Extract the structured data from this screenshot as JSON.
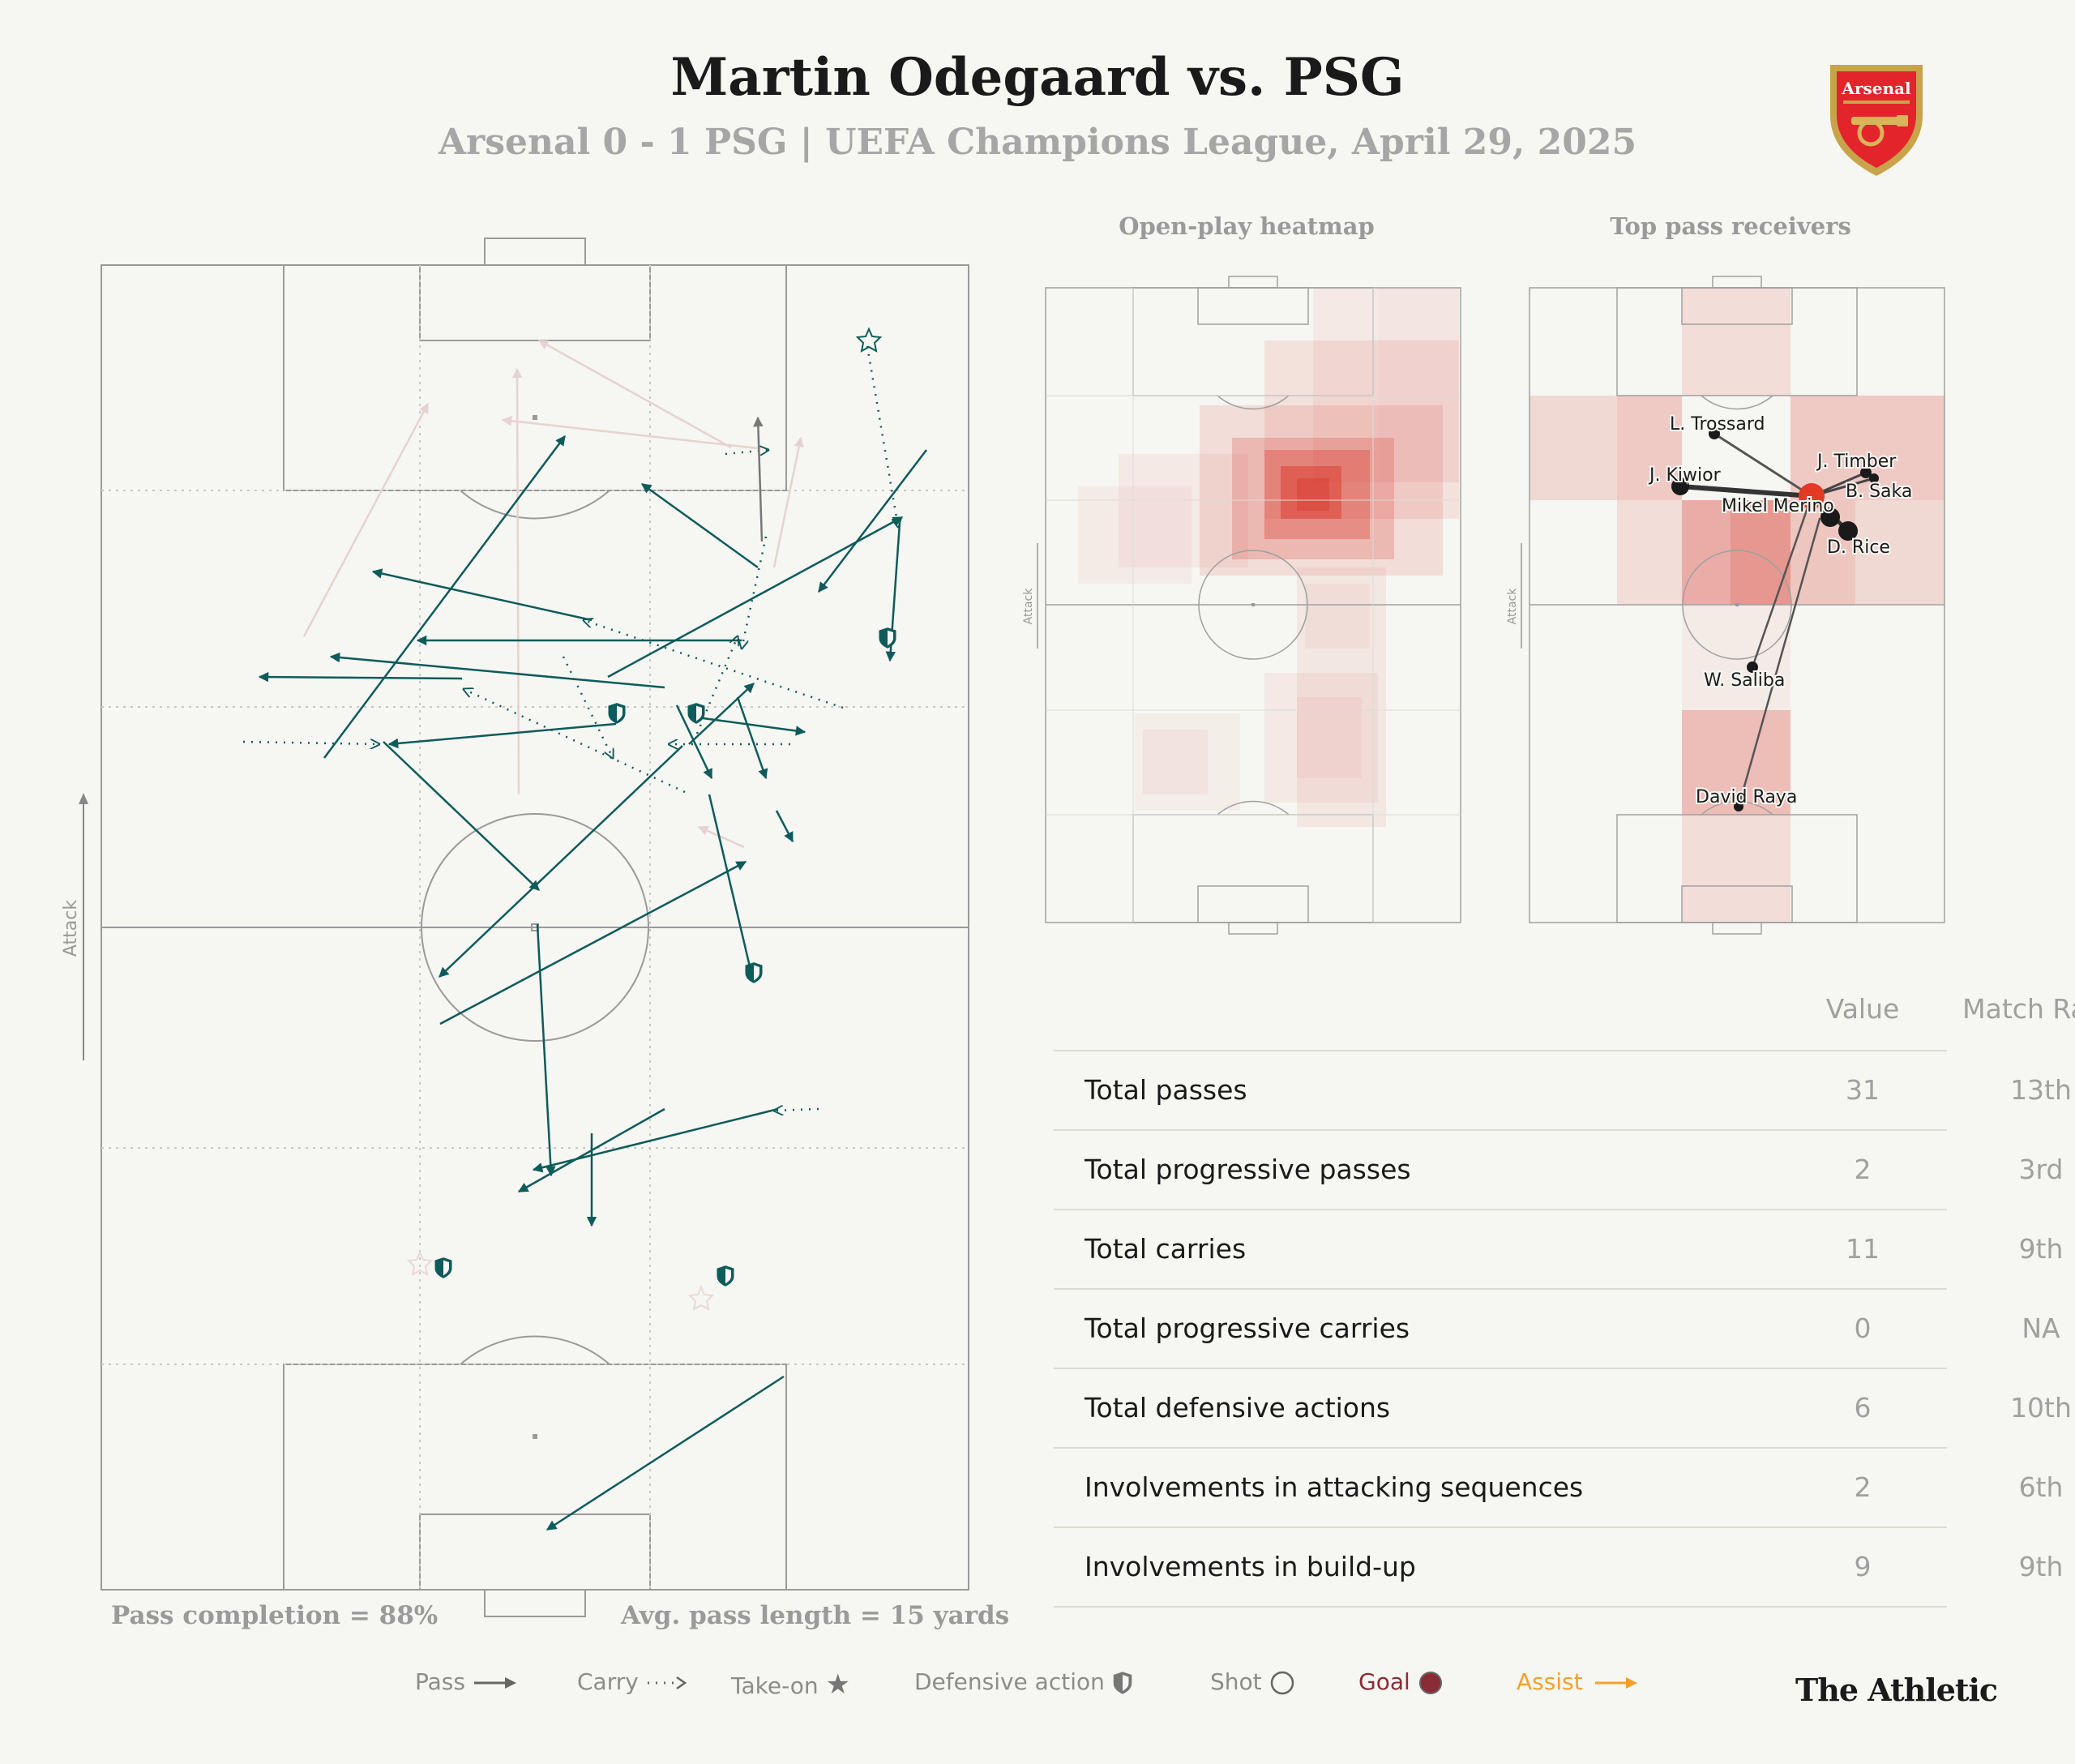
{
  "header": {
    "title": "Martin Odegaard vs. PSG",
    "subtitle": "Arsenal 0 - 1 PSG | UEFA Champions League, April 29, 2025",
    "crest_text": "Arsenal"
  },
  "main_pitch": {
    "attack_label": "Attack",
    "pass_completion": "Pass completion = 88%",
    "avg_pass_length": "Avg. pass length = 15 yards"
  },
  "heatmap": {
    "title": "Open-play heatmap",
    "attack_label": "Attack"
  },
  "receivers": {
    "title": "Top pass receivers",
    "attack_label": "Attack",
    "players": [
      {
        "name": "L. Trossard"
      },
      {
        "name": "J. Kiwior"
      },
      {
        "name": "J. Timber"
      },
      {
        "name": "B. Saka"
      },
      {
        "name": "Mikel Merino"
      },
      {
        "name": "D. Rice"
      },
      {
        "name": "W. Saliba"
      },
      {
        "name": "David Raya"
      }
    ]
  },
  "stats": {
    "col_value": "Value",
    "col_rank": "Match Rank",
    "rows": [
      {
        "label": "Total passes",
        "value": "31",
        "rank": "13th"
      },
      {
        "label": "Total progressive passes",
        "value": "2",
        "rank": "3rd"
      },
      {
        "label": "Total carries",
        "value": "11",
        "rank": "9th"
      },
      {
        "label": "Total progressive carries",
        "value": "0",
        "rank": "NA"
      },
      {
        "label": "Total defensive actions",
        "value": "6",
        "rank": "10th"
      },
      {
        "label": "Involvements in attacking sequences",
        "value": "2",
        "rank": "6th"
      },
      {
        "label": "Involvements in build-up",
        "value": "9",
        "rank": "9th"
      }
    ]
  },
  "legend": {
    "pass": "Pass",
    "carry": "Carry",
    "take_on": "Take-on",
    "defensive": "Defensive action",
    "shot": "Shot",
    "goal": "Goal",
    "assist": "Assist"
  },
  "branding": {
    "publisher": "The Athletic"
  },
  "colors": {
    "pass": "#0e5b5b",
    "faded": "#e8d3d0",
    "heat": "#d62a1f",
    "assist": "#f2a12e",
    "goal": "#8a2c35"
  }
}
